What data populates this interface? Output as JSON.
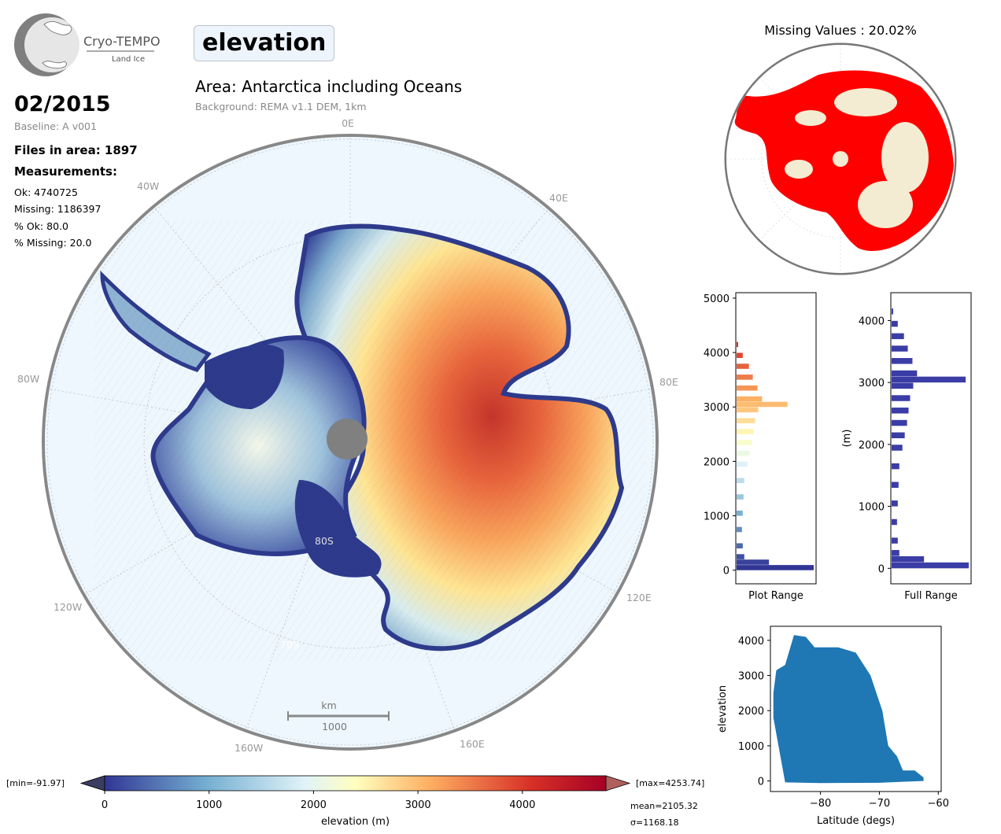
{
  "logo": {
    "name": "Cryo-TEMPO",
    "subtitle": "Land Ice"
  },
  "product": {
    "parameter": "elevation"
  },
  "header": {
    "area_title": "Area: Antarctica including Oceans",
    "background_note": "Background: REMA v1.1 DEM, 1km"
  },
  "info": {
    "date": "02/2015",
    "baseline": "Baseline: A v001",
    "files": "Files in area: 1897",
    "measurements_heading": "Measurements:",
    "ok": "Ok: 4740725",
    "missing": "Missing: 1186397",
    "pct_ok": "% Ok: 80.0",
    "pct_missing": "% Missing: 20.0"
  },
  "main_map": {
    "longitude_labels": [
      "0E",
      "40E",
      "80E",
      "120E",
      "160E",
      "160W",
      "120W",
      "80W",
      "40W"
    ],
    "latitude_labels": [
      "80S",
      "70S"
    ],
    "scale_bar": {
      "unit": "km",
      "value": "1000"
    },
    "colors": {
      "ocean": "#eef7fe",
      "pole_hole": "#808080"
    }
  },
  "missing_map": {
    "title": "Missing Values : 20.02%",
    "colors": {
      "missing": "#ff0000",
      "ok": "#f4ecd2"
    }
  },
  "histograms": {
    "plot_range": {
      "xlabel": "Plot Range",
      "yticks": [
        "0",
        "1000",
        "2000",
        "3000",
        "4000",
        "5000"
      ],
      "ylim": [
        -250,
        5100
      ],
      "bins": [
        {
          "y": 0,
          "v": 1.0
        },
        {
          "y": 100,
          "v": 0.42
        },
        {
          "y": 200,
          "v": 0.1
        },
        {
          "y": 400,
          "v": 0.08
        },
        {
          "y": 700,
          "v": 0.07
        },
        {
          "y": 1000,
          "v": 0.08
        },
        {
          "y": 1300,
          "v": 0.09
        },
        {
          "y": 1600,
          "v": 0.1
        },
        {
          "y": 1900,
          "v": 0.14
        },
        {
          "y": 2100,
          "v": 0.17
        },
        {
          "y": 2300,
          "v": 0.2
        },
        {
          "y": 2500,
          "v": 0.22
        },
        {
          "y": 2700,
          "v": 0.24
        },
        {
          "y": 2900,
          "v": 0.28
        },
        {
          "y": 3000,
          "v": 0.66
        },
        {
          "y": 3100,
          "v": 0.33
        },
        {
          "y": 3300,
          "v": 0.27
        },
        {
          "y": 3500,
          "v": 0.21
        },
        {
          "y": 3700,
          "v": 0.16
        },
        {
          "y": 3900,
          "v": 0.08
        },
        {
          "y": 4100,
          "v": 0.02
        }
      ]
    },
    "full_range": {
      "xlabel": "Full Range",
      "ylabel": "(m)",
      "yticks": [
        "0",
        "1000",
        "2000",
        "3000",
        "4000"
      ],
      "ylim": [
        -250,
        4450
      ],
      "bins": [
        {
          "y": 0,
          "v": 1.0
        },
        {
          "y": 100,
          "v": 0.42
        },
        {
          "y": 200,
          "v": 0.1
        },
        {
          "y": 400,
          "v": 0.08
        },
        {
          "y": 700,
          "v": 0.07
        },
        {
          "y": 1000,
          "v": 0.08
        },
        {
          "y": 1300,
          "v": 0.09
        },
        {
          "y": 1600,
          "v": 0.1
        },
        {
          "y": 1900,
          "v": 0.14
        },
        {
          "y": 2100,
          "v": 0.17
        },
        {
          "y": 2300,
          "v": 0.2
        },
        {
          "y": 2500,
          "v": 0.22
        },
        {
          "y": 2700,
          "v": 0.24
        },
        {
          "y": 2900,
          "v": 0.28
        },
        {
          "y": 3000,
          "v": 0.96
        },
        {
          "y": 3100,
          "v": 0.33
        },
        {
          "y": 3300,
          "v": 0.27
        },
        {
          "y": 3500,
          "v": 0.21
        },
        {
          "y": 3700,
          "v": 0.16
        },
        {
          "y": 3900,
          "v": 0.08
        },
        {
          "y": 4100,
          "v": 0.02
        }
      ],
      "color": "#3b3da6"
    }
  },
  "chart_data": {
    "type": "scatter",
    "xlabel": "Latitude (degs)",
    "ylabel": "elevation",
    "xlim": [
      -88.5,
      -59.5
    ],
    "ylim": [
      -300,
      4400
    ],
    "xticks": [
      "−80",
      "−70",
      "−60"
    ],
    "yticks": [
      "0",
      "1000",
      "2000",
      "3000",
      "4000"
    ],
    "color": "#1f77b4",
    "upper_envelope": [
      {
        "x": -88.0,
        "y": 2500
      },
      {
        "x": -87.5,
        "y": 3150
      },
      {
        "x": -86.0,
        "y": 3300
      },
      {
        "x": -84.5,
        "y": 4150
      },
      {
        "x": -82.5,
        "y": 4100
      },
      {
        "x": -81.0,
        "y": 3800
      },
      {
        "x": -77.0,
        "y": 3800
      },
      {
        "x": -74.0,
        "y": 3650
      },
      {
        "x": -71.5,
        "y": 3000
      },
      {
        "x": -69.5,
        "y": 2000
      },
      {
        "x": -68.5,
        "y": 1000
      },
      {
        "x": -67.0,
        "y": 700
      },
      {
        "x": -66.0,
        "y": 300
      },
      {
        "x": -64.0,
        "y": 300
      },
      {
        "x": -62.5,
        "y": 100
      }
    ],
    "lower_envelope": [
      {
        "x": -62.5,
        "y": 0
      },
      {
        "x": -70.0,
        "y": -50
      },
      {
        "x": -80.0,
        "y": -60
      },
      {
        "x": -86.0,
        "y": -40
      },
      {
        "x": -88.0,
        "y": 1800
      }
    ]
  },
  "colorbar": {
    "label": "elevation (m)",
    "ticks": [
      "0",
      "1000",
      "2000",
      "3000",
      "4000"
    ],
    "range": [
      0,
      4800
    ],
    "min_label": "[min=-91.97]",
    "max_label": "[max=4253.74]",
    "mean_label": "mean=2105.32",
    "sigma_label": "σ=1168.18"
  }
}
